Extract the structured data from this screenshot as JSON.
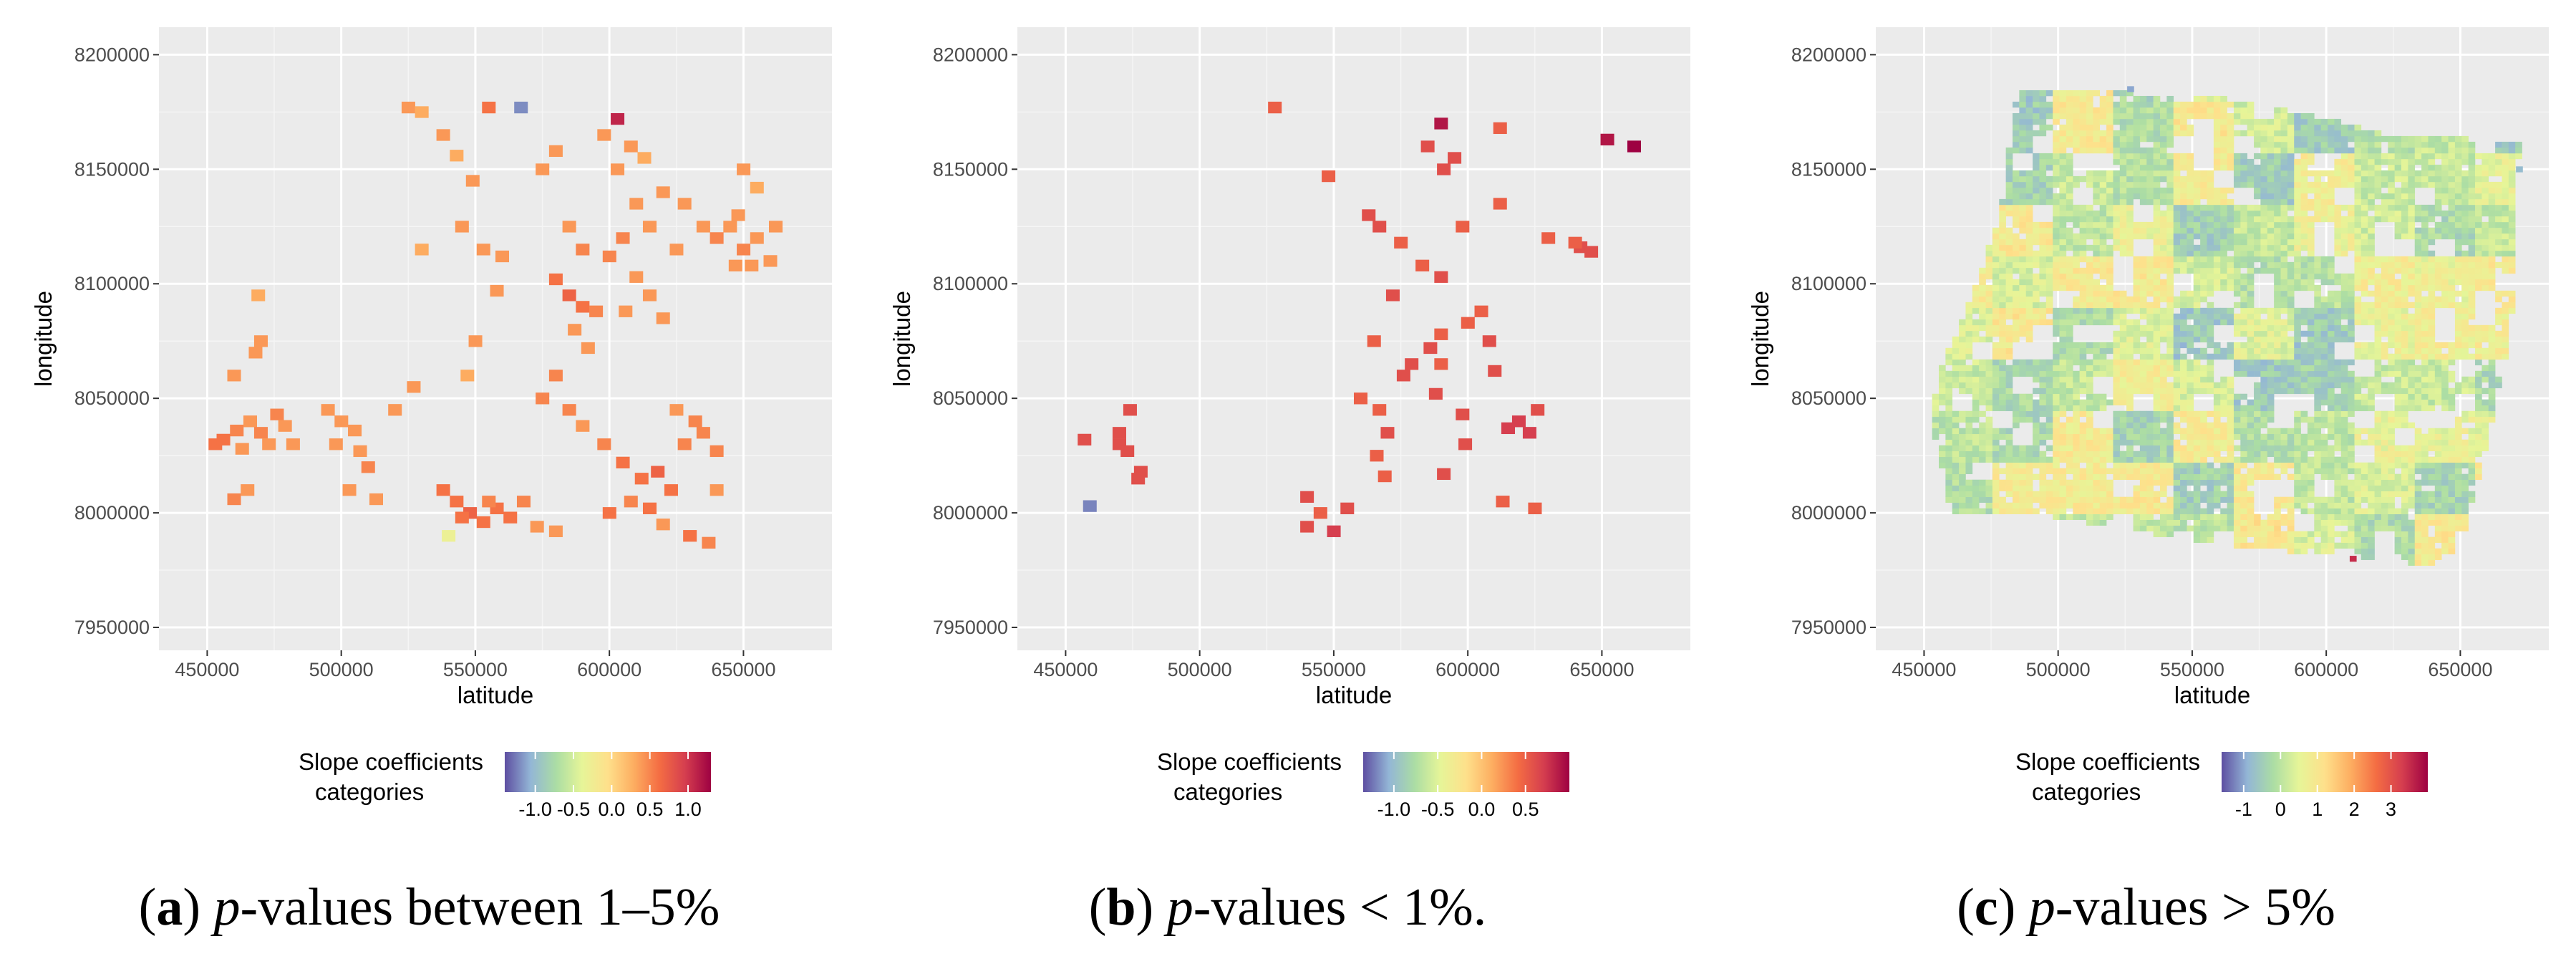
{
  "chart_data": [
    {
      "type": "heatmap",
      "panel_label": "a",
      "caption": {
        "italic": "p",
        "rest": "-values between 1–5%"
      },
      "xlabel": "latitude",
      "ylabel": "longitude",
      "xlim": [
        432000,
        683000
      ],
      "ylim": [
        7940000,
        8212000
      ],
      "xticks": [
        450000,
        500000,
        550000,
        600000,
        650000
      ],
      "yticks": [
        7950000,
        8000000,
        8050000,
        8100000,
        8150000,
        8200000
      ],
      "cell_size": [
        5000,
        5000
      ],
      "legend": {
        "title_line1": "Slope coefficients",
        "title_line2": "categories",
        "range": [
          -1.4,
          1.3
        ],
        "ticks": [
          -1.0,
          -0.5,
          0.0,
          0.5,
          1.0
        ],
        "tick_labels": [
          "-1.0",
          "-0.5",
          "0.0",
          "0.5",
          "1.0"
        ]
      },
      "points": [
        [
          453000,
          8030000,
          0.6
        ],
        [
          456000,
          8032000,
          0.6
        ],
        [
          461000,
          8036000,
          0.5
        ],
        [
          463000,
          8028000,
          0.4
        ],
        [
          466000,
          8040000,
          0.4
        ],
        [
          470000,
          8035000,
          0.5
        ],
        [
          473000,
          8030000,
          0.4
        ],
        [
          476000,
          8043000,
          0.5
        ],
        [
          479000,
          8038000,
          0.4
        ],
        [
          482000,
          8030000,
          0.4
        ],
        [
          460000,
          8006000,
          0.5
        ],
        [
          465000,
          8010000,
          0.4
        ],
        [
          468000,
          8070000,
          0.4
        ],
        [
          470000,
          8075000,
          0.4
        ],
        [
          469000,
          8095000,
          0.3
        ],
        [
          460000,
          8060000,
          0.4
        ],
        [
          495000,
          8045000,
          0.4
        ],
        [
          500000,
          8040000,
          0.4
        ],
        [
          505000,
          8036000,
          0.4
        ],
        [
          498000,
          8030000,
          0.4
        ],
        [
          507000,
          8027000,
          0.4
        ],
        [
          510000,
          8020000,
          0.5
        ],
        [
          503000,
          8010000,
          0.4
        ],
        [
          513000,
          8006000,
          0.4
        ],
        [
          520000,
          8045000,
          0.4
        ],
        [
          527000,
          8055000,
          0.4
        ],
        [
          525000,
          8177000,
          0.4
        ],
        [
          530000,
          8175000,
          0.3
        ],
        [
          538000,
          8165000,
          0.4
        ],
        [
          543000,
          8156000,
          0.3
        ],
        [
          549000,
          8145000,
          0.4
        ],
        [
          545000,
          8125000,
          0.4
        ],
        [
          553000,
          8115000,
          0.4
        ],
        [
          560000,
          8112000,
          0.4
        ],
        [
          558000,
          8097000,
          0.4
        ],
        [
          530000,
          8115000,
          0.3
        ],
        [
          550000,
          8075000,
          0.4
        ],
        [
          547000,
          8060000,
          0.3
        ],
        [
          538000,
          8010000,
          0.6
        ],
        [
          543000,
          8005000,
          0.6
        ],
        [
          548000,
          8000000,
          0.7
        ],
        [
          553000,
          7996000,
          0.6
        ],
        [
          558000,
          8002000,
          0.6
        ],
        [
          563000,
          7998000,
          0.6
        ],
        [
          568000,
          8005000,
          0.5
        ],
        [
          573000,
          7994000,
          0.4
        ],
        [
          580000,
          7992000,
          0.4
        ],
        [
          540000,
          7990000,
          -0.3
        ],
        [
          545000,
          7998000,
          0.6
        ],
        [
          555000,
          8005000,
          0.5
        ],
        [
          555000,
          8177000,
          0.6
        ],
        [
          567000,
          8177000,
          -1.2
        ],
        [
          575000,
          8150000,
          0.4
        ],
        [
          580000,
          8158000,
          0.4
        ],
        [
          585000,
          8125000,
          0.4
        ],
        [
          590000,
          8115000,
          0.5
        ],
        [
          580000,
          8102000,
          0.6
        ],
        [
          585000,
          8095000,
          0.7
        ],
        [
          590000,
          8090000,
          0.6
        ],
        [
          595000,
          8088000,
          0.5
        ],
        [
          587000,
          8080000,
          0.4
        ],
        [
          592000,
          8072000,
          0.4
        ],
        [
          580000,
          8060000,
          0.5
        ],
        [
          575000,
          8050000,
          0.5
        ],
        [
          585000,
          8045000,
          0.5
        ],
        [
          590000,
          8038000,
          0.4
        ],
        [
          598000,
          8030000,
          0.5
        ],
        [
          603000,
          8172000,
          1.1
        ],
        [
          598000,
          8165000,
          0.4
        ],
        [
          608000,
          8160000,
          0.4
        ],
        [
          613000,
          8155000,
          0.3
        ],
        [
          603000,
          8150000,
          0.4
        ],
        [
          610000,
          8135000,
          0.4
        ],
        [
          605000,
          8120000,
          0.5
        ],
        [
          600000,
          8112000,
          0.5
        ],
        [
          610000,
          8103000,
          0.4
        ],
        [
          615000,
          8095000,
          0.4
        ],
        [
          606000,
          8088000,
          0.4
        ],
        [
          620000,
          8085000,
          0.4
        ],
        [
          625000,
          8115000,
          0.4
        ],
        [
          615000,
          8125000,
          0.4
        ],
        [
          620000,
          8140000,
          0.4
        ],
        [
          628000,
          8135000,
          0.4
        ],
        [
          635000,
          8125000,
          0.4
        ],
        [
          605000,
          8022000,
          0.6
        ],
        [
          612000,
          8015000,
          0.6
        ],
        [
          618000,
          8018000,
          0.7
        ],
        [
          623000,
          8010000,
          0.6
        ],
        [
          608000,
          8005000,
          0.5
        ],
        [
          600000,
          8000000,
          0.6
        ],
        [
          615000,
          8002000,
          0.6
        ],
        [
          620000,
          7995000,
          0.4
        ],
        [
          628000,
          8030000,
          0.5
        ],
        [
          632000,
          8040000,
          0.5
        ],
        [
          625000,
          8045000,
          0.4
        ],
        [
          635000,
          8035000,
          0.5
        ],
        [
          640000,
          8027000,
          0.5
        ],
        [
          630000,
          7990000,
          0.6
        ],
        [
          637000,
          7987000,
          0.5
        ],
        [
          640000,
          8010000,
          0.4
        ],
        [
          640000,
          8120000,
          0.5
        ],
        [
          645000,
          8125000,
          0.4
        ],
        [
          650000,
          8115000,
          0.5
        ],
        [
          655000,
          8120000,
          0.4
        ],
        [
          648000,
          8130000,
          0.4
        ],
        [
          653000,
          8108000,
          0.4
        ],
        [
          660000,
          8110000,
          0.4
        ],
        [
          662000,
          8125000,
          0.4
        ],
        [
          650000,
          8150000,
          0.4
        ],
        [
          655000,
          8142000,
          0.3
        ],
        [
          647000,
          8108000,
          0.4
        ]
      ]
    },
    {
      "type": "heatmap",
      "panel_label": "b",
      "caption": {
        "italic": "p",
        "rest": "-values < 1%."
      },
      "xlabel": "latitude",
      "ylabel": "longitude",
      "xlim": [
        432000,
        683000
      ],
      "ylim": [
        7940000,
        8212000
      ],
      "xticks": [
        450000,
        500000,
        550000,
        600000,
        650000
      ],
      "yticks": [
        7950000,
        8000000,
        8050000,
        8100000,
        8150000,
        8200000
      ],
      "cell_size": [
        5000,
        5000
      ],
      "legend": {
        "title_line1": "Slope coefficients",
        "title_line2": "categories",
        "range": [
          -1.35,
          1.0
        ],
        "ticks": [
          -1.0,
          -0.5,
          0.0,
          0.5
        ],
        "tick_labels": [
          "-1.0",
          "-0.5",
          "0.0",
          "0.5"
        ]
      },
      "points": [
        [
          459000,
          8003000,
          -1.2
        ],
        [
          457000,
          8032000,
          0.6
        ],
        [
          470000,
          8035000,
          0.6
        ],
        [
          470000,
          8030000,
          0.6
        ],
        [
          473000,
          8027000,
          0.6
        ],
        [
          474000,
          8045000,
          0.6
        ],
        [
          478000,
          8018000,
          0.6
        ],
        [
          477000,
          8015000,
          0.6
        ],
        [
          528000,
          8177000,
          0.5
        ],
        [
          548000,
          8147000,
          0.5
        ],
        [
          563000,
          8130000,
          0.6
        ],
        [
          567000,
          8125000,
          0.6
        ],
        [
          575000,
          8118000,
          0.5
        ],
        [
          572000,
          8095000,
          0.6
        ],
        [
          565000,
          8075000,
          0.5
        ],
        [
          560000,
          8050000,
          0.5
        ],
        [
          567000,
          8045000,
          0.5
        ],
        [
          570000,
          8035000,
          0.6
        ],
        [
          566000,
          8025000,
          0.5
        ],
        [
          569000,
          8016000,
          0.5
        ],
        [
          540000,
          8007000,
          0.6
        ],
        [
          545000,
          8000000,
          0.5
        ],
        [
          540000,
          7994000,
          0.6
        ],
        [
          550000,
          7992000,
          0.7
        ],
        [
          555000,
          8002000,
          0.6
        ],
        [
          590000,
          8170000,
          0.9
        ],
        [
          585000,
          8160000,
          0.6
        ],
        [
          595000,
          8155000,
          0.6
        ],
        [
          591000,
          8150000,
          0.6
        ],
        [
          583000,
          8108000,
          0.5
        ],
        [
          590000,
          8103000,
          0.6
        ],
        [
          598000,
          8125000,
          0.5
        ],
        [
          612000,
          8168000,
          0.5
        ],
        [
          612000,
          8135000,
          0.5
        ],
        [
          600000,
          8083000,
          0.5
        ],
        [
          590000,
          8078000,
          0.5
        ],
        [
          586000,
          8072000,
          0.6
        ],
        [
          579000,
          8065000,
          0.6
        ],
        [
          576000,
          8060000,
          0.6
        ],
        [
          590000,
          8065000,
          0.5
        ],
        [
          605000,
          8088000,
          0.5
        ],
        [
          608000,
          8075000,
          0.6
        ],
        [
          610000,
          8062000,
          0.6
        ],
        [
          615000,
          8037000,
          0.7
        ],
        [
          619000,
          8040000,
          0.7
        ],
        [
          623000,
          8035000,
          0.7
        ],
        [
          626000,
          8045000,
          0.6
        ],
        [
          599000,
          8030000,
          0.6
        ],
        [
          598000,
          8043000,
          0.6
        ],
        [
          588000,
          8052000,
          0.6
        ],
        [
          613000,
          8005000,
          0.5
        ],
        [
          625000,
          8002000,
          0.5
        ],
        [
          591000,
          8017000,
          0.6
        ],
        [
          652000,
          8163000,
          0.9
        ],
        [
          662000,
          8160000,
          1.0
        ],
        [
          630000,
          8120000,
          0.5
        ],
        [
          642000,
          8116000,
          0.6
        ],
        [
          646000,
          8114000,
          0.6
        ],
        [
          640000,
          8118000,
          0.5
        ]
      ]
    },
    {
      "type": "heatmap",
      "panel_label": "c",
      "caption": {
        "italic": "p",
        "rest": "-values > 5%"
      },
      "xlabel": "latitude",
      "ylabel": "longitude",
      "xlim": [
        432000,
        683000
      ],
      "ylim": [
        7940000,
        8212000
      ],
      "xticks": [
        450000,
        500000,
        550000,
        600000,
        650000
      ],
      "yticks": [
        7950000,
        8000000,
        8050000,
        8100000,
        8150000,
        8200000
      ],
      "cell_size": [
        2500,
        2500
      ],
      "legend": {
        "title_line1": "Slope coefficients",
        "title_line2": "categories",
        "range": [
          -1.6,
          4.0
        ],
        "ticks": [
          -1,
          0,
          1,
          2,
          3
        ],
        "tick_labels": [
          "-1",
          "0",
          "1",
          "2",
          "3"
        ]
      },
      "region": {
        "polygon": [
          [
            485000,
            8185000
          ],
          [
            560000,
            8182000
          ],
          [
            580000,
            8177000
          ],
          [
            600000,
            8172000
          ],
          [
            625000,
            8165000
          ],
          [
            672000,
            8162000
          ],
          [
            669000,
            8080000
          ],
          [
            660000,
            8030000
          ],
          [
            650000,
            7985000
          ],
          [
            640000,
            7977000
          ],
          [
            610000,
            7980000
          ],
          [
            570000,
            7985000
          ],
          [
            540000,
            7990000
          ],
          [
            500000,
            7998000
          ],
          [
            460000,
            8000000
          ],
          [
            453000,
            8040000
          ],
          [
            455000,
            8060000
          ],
          [
            468000,
            8095000
          ],
          [
            478000,
            8130000
          ]
        ],
        "base_value": 0.2,
        "outliers": [
          [
            610000,
            7980000,
            3.5
          ],
          [
            527000,
            8185000,
            -1.0
          ],
          [
            672000,
            8150000,
            -0.8
          ]
        ]
      }
    }
  ]
}
